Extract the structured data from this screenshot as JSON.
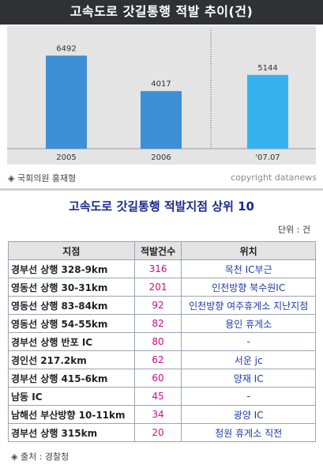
{
  "header": {
    "title": "고속도로 갓길통행 적발 추이(건)"
  },
  "chart_data": {
    "type": "bar",
    "categories": [
      "2005",
      "2006",
      "'07.07"
    ],
    "values": [
      6492,
      4017,
      5144
    ],
    "ylim": [
      0,
      8000
    ],
    "grid": false,
    "colors": [
      "#3d8fd6",
      "#3d8fd6",
      "#38b2ef"
    ]
  },
  "source_credit": "◈ 국회의원 홍재형",
  "copyright": "copyright datanews",
  "subtitle": "고속도로 갓길통행 적발지점 상위 10",
  "unit": "단위 : 건",
  "table": {
    "headers": [
      "지점",
      "적발건수",
      "위치"
    ],
    "rows": [
      {
        "name": "경부선 상행 328-9km",
        "count": "316",
        "location": "목천 IC부근"
      },
      {
        "name": "영동선 상행 30-31km",
        "count": "201",
        "location": "인천방향 북수원IC"
      },
      {
        "name": "영동선 상행 83-84km",
        "count": "92",
        "location": "인천방향 여주휴게소 지난지점"
      },
      {
        "name": "영동선 상행 54-55km",
        "count": "82",
        "location": "용인 휴게소"
      },
      {
        "name": "경부선 상행 반포 IC",
        "count": "80",
        "location": "-"
      },
      {
        "name": "경인선 217.2km",
        "count": "62",
        "location": "서운 jc"
      },
      {
        "name": "경부선 상행 415-6km",
        "count": "60",
        "location": "양재 IC"
      },
      {
        "name": "남동 IC",
        "count": "45",
        "location": "-"
      },
      {
        "name": "남해선 부산방향 10-11km",
        "count": "34",
        "location": "광양 IC"
      },
      {
        "name": "경부선 상행 315km",
        "count": "20",
        "location": "청원 휴게소 직전"
      }
    ]
  },
  "footer_source": "◈ 출처 : 경찰청"
}
